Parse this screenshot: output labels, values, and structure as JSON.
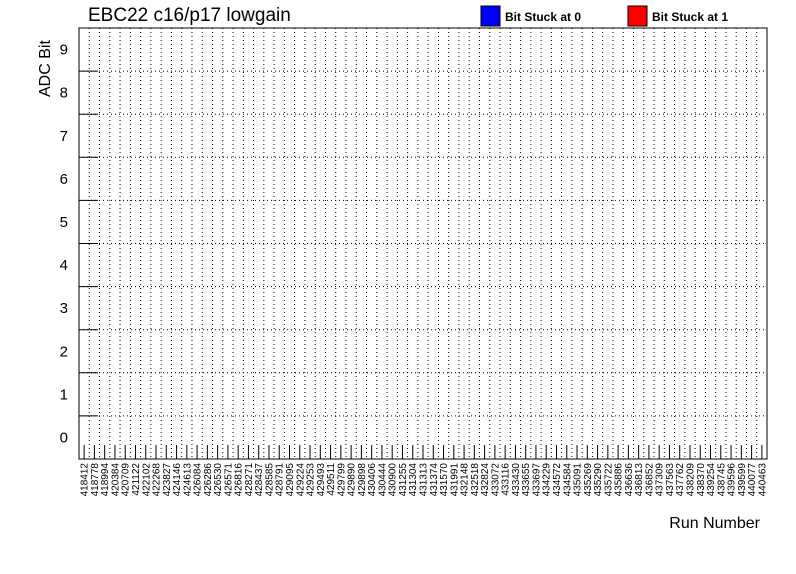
{
  "chart_data": {
    "type": "heatmap",
    "title": "EBC22 c16/p17 lowgain",
    "xlabel": "Run Number",
    "ylabel": "ADC Bit",
    "y_categories": [
      "0",
      "1",
      "2",
      "3",
      "4",
      "5",
      "6",
      "7",
      "8",
      "9"
    ],
    "x_categories": [
      "418412",
      "418778",
      "418994",
      "420384",
      "420709",
      "421122",
      "422102",
      "422268",
      "423827",
      "424146",
      "424613",
      "426084",
      "426286",
      "426530",
      "426571",
      "426816",
      "428271",
      "428437",
      "428585",
      "428791",
      "429095",
      "429224",
      "429253",
      "429493",
      "429511",
      "429799",
      "429890",
      "429898",
      "430406",
      "430444",
      "430900",
      "431255",
      "431304",
      "431313",
      "431374",
      "431570",
      "431991",
      "432148",
      "432518",
      "432824",
      "433072",
      "433116",
      "433430",
      "433655",
      "433697",
      "434229",
      "434572",
      "434584",
      "435091",
      "435269",
      "435290",
      "435722",
      "435886",
      "436636",
      "436813",
      "436852",
      "437309",
      "437563",
      "437762",
      "438209",
      "438370",
      "439254",
      "438745",
      "439596",
      "439599",
      "440077",
      "440463"
    ],
    "legend": [
      {
        "label": "Bit Stuck at 0",
        "color": "#0000ff"
      },
      {
        "label": "Bit Stuck at 1",
        "color": "#ff0000"
      }
    ],
    "stuck_bits": [],
    "grid": true,
    "legend_placement": "top-right"
  }
}
